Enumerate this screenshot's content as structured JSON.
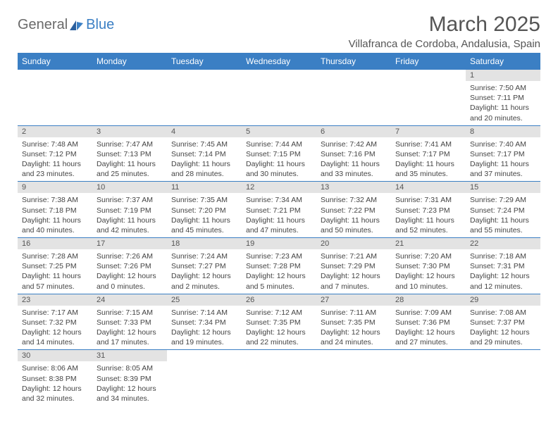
{
  "logo": {
    "part1": "General",
    "part2": "Blue"
  },
  "title": "March 2025",
  "location": "Villafranca de Cordoba, Andalusia, Spain",
  "colors": {
    "header_bg": "#3b7fc4",
    "header_text": "#ffffff",
    "daynum_bg": "#e3e3e3",
    "border": "#3b7fc4",
    "body_text": "#444444",
    "title_text": "#555555"
  },
  "weekdays": [
    "Sunday",
    "Monday",
    "Tuesday",
    "Wednesday",
    "Thursday",
    "Friday",
    "Saturday"
  ],
  "weeks": [
    [
      null,
      null,
      null,
      null,
      null,
      null,
      {
        "n": "1",
        "sunrise": "7:50 AM",
        "sunset": "7:11 PM",
        "dl": "11 hours and 20 minutes."
      }
    ],
    [
      {
        "n": "2",
        "sunrise": "7:48 AM",
        "sunset": "7:12 PM",
        "dl": "11 hours and 23 minutes."
      },
      {
        "n": "3",
        "sunrise": "7:47 AM",
        "sunset": "7:13 PM",
        "dl": "11 hours and 25 minutes."
      },
      {
        "n": "4",
        "sunrise": "7:45 AM",
        "sunset": "7:14 PM",
        "dl": "11 hours and 28 minutes."
      },
      {
        "n": "5",
        "sunrise": "7:44 AM",
        "sunset": "7:15 PM",
        "dl": "11 hours and 30 minutes."
      },
      {
        "n": "6",
        "sunrise": "7:42 AM",
        "sunset": "7:16 PM",
        "dl": "11 hours and 33 minutes."
      },
      {
        "n": "7",
        "sunrise": "7:41 AM",
        "sunset": "7:17 PM",
        "dl": "11 hours and 35 minutes."
      },
      {
        "n": "8",
        "sunrise": "7:40 AM",
        "sunset": "7:17 PM",
        "dl": "11 hours and 37 minutes."
      }
    ],
    [
      {
        "n": "9",
        "sunrise": "7:38 AM",
        "sunset": "7:18 PM",
        "dl": "11 hours and 40 minutes."
      },
      {
        "n": "10",
        "sunrise": "7:37 AM",
        "sunset": "7:19 PM",
        "dl": "11 hours and 42 minutes."
      },
      {
        "n": "11",
        "sunrise": "7:35 AM",
        "sunset": "7:20 PM",
        "dl": "11 hours and 45 minutes."
      },
      {
        "n": "12",
        "sunrise": "7:34 AM",
        "sunset": "7:21 PM",
        "dl": "11 hours and 47 minutes."
      },
      {
        "n": "13",
        "sunrise": "7:32 AM",
        "sunset": "7:22 PM",
        "dl": "11 hours and 50 minutes."
      },
      {
        "n": "14",
        "sunrise": "7:31 AM",
        "sunset": "7:23 PM",
        "dl": "11 hours and 52 minutes."
      },
      {
        "n": "15",
        "sunrise": "7:29 AM",
        "sunset": "7:24 PM",
        "dl": "11 hours and 55 minutes."
      }
    ],
    [
      {
        "n": "16",
        "sunrise": "7:28 AM",
        "sunset": "7:25 PM",
        "dl": "11 hours and 57 minutes."
      },
      {
        "n": "17",
        "sunrise": "7:26 AM",
        "sunset": "7:26 PM",
        "dl": "12 hours and 0 minutes."
      },
      {
        "n": "18",
        "sunrise": "7:24 AM",
        "sunset": "7:27 PM",
        "dl": "12 hours and 2 minutes."
      },
      {
        "n": "19",
        "sunrise": "7:23 AM",
        "sunset": "7:28 PM",
        "dl": "12 hours and 5 minutes."
      },
      {
        "n": "20",
        "sunrise": "7:21 AM",
        "sunset": "7:29 PM",
        "dl": "12 hours and 7 minutes."
      },
      {
        "n": "21",
        "sunrise": "7:20 AM",
        "sunset": "7:30 PM",
        "dl": "12 hours and 10 minutes."
      },
      {
        "n": "22",
        "sunrise": "7:18 AM",
        "sunset": "7:31 PM",
        "dl": "12 hours and 12 minutes."
      }
    ],
    [
      {
        "n": "23",
        "sunrise": "7:17 AM",
        "sunset": "7:32 PM",
        "dl": "12 hours and 14 minutes."
      },
      {
        "n": "24",
        "sunrise": "7:15 AM",
        "sunset": "7:33 PM",
        "dl": "12 hours and 17 minutes."
      },
      {
        "n": "25",
        "sunrise": "7:14 AM",
        "sunset": "7:34 PM",
        "dl": "12 hours and 19 minutes."
      },
      {
        "n": "26",
        "sunrise": "7:12 AM",
        "sunset": "7:35 PM",
        "dl": "12 hours and 22 minutes."
      },
      {
        "n": "27",
        "sunrise": "7:11 AM",
        "sunset": "7:35 PM",
        "dl": "12 hours and 24 minutes."
      },
      {
        "n": "28",
        "sunrise": "7:09 AM",
        "sunset": "7:36 PM",
        "dl": "12 hours and 27 minutes."
      },
      {
        "n": "29",
        "sunrise": "7:08 AM",
        "sunset": "7:37 PM",
        "dl": "12 hours and 29 minutes."
      }
    ],
    [
      {
        "n": "30",
        "sunrise": "8:06 AM",
        "sunset": "8:38 PM",
        "dl": "12 hours and 32 minutes."
      },
      {
        "n": "31",
        "sunrise": "8:05 AM",
        "sunset": "8:39 PM",
        "dl": "12 hours and 34 minutes."
      },
      null,
      null,
      null,
      null,
      null
    ]
  ],
  "labels": {
    "sunrise": "Sunrise: ",
    "sunset": "Sunset: ",
    "daylight": "Daylight: "
  }
}
